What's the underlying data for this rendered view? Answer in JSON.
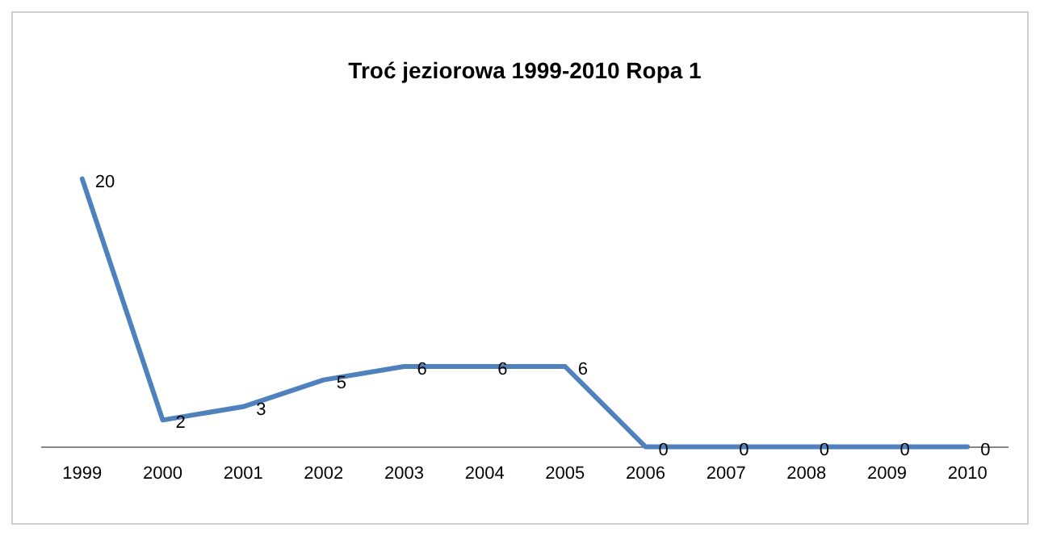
{
  "chart_data": {
    "type": "line",
    "title": "Troć jeziorowa 1999-2010 Ropa 1",
    "categories": [
      "1999",
      "2000",
      "2001",
      "2002",
      "2003",
      "2004",
      "2005",
      "2006",
      "2007",
      "2008",
      "2009",
      "2010"
    ],
    "series": [
      {
        "color": "#4f81bd",
        "values": [
          20,
          2,
          3,
          5,
          6,
          6,
          6,
          0,
          0,
          0,
          0,
          0
        ]
      }
    ],
    "data_labels": true,
    "grid": false,
    "legend": false,
    "tick_labels": "x",
    "marker": "none",
    "line_style": "solid"
  }
}
